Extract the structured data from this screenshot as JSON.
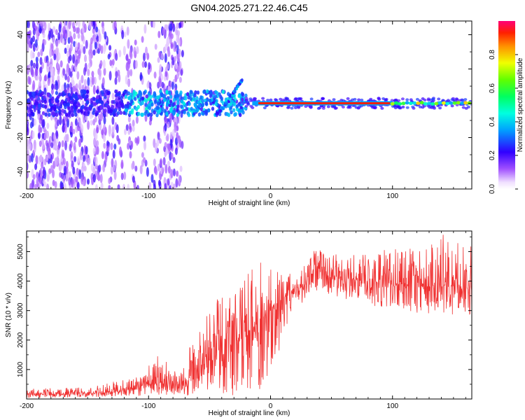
{
  "title": "GN04.2025.271.22.46.C45",
  "chart_data": [
    {
      "type": "heatmap",
      "title": "GN04.2025.271.22.46.C45",
      "xlabel": "Height of straight line (km)",
      "ylabel": "Frequency (Hz)",
      "xlim": [
        -200,
        165
      ],
      "ylim": [
        -50,
        48
      ],
      "xticks": [
        -200,
        -100,
        0,
        100
      ],
      "xtick_labels": [
        "-200",
        "-100",
        "0",
        "100"
      ],
      "yticks": [
        -40,
        -20,
        0,
        20,
        40
      ],
      "ytick_labels": [
        "-40",
        "-20",
        "0",
        "20",
        "40"
      ],
      "colorbar": {
        "label": "Normalized spectral amplitude",
        "range": [
          0,
          1
        ],
        "ticks": [
          0.0,
          0.2,
          0.4,
          0.6,
          0.8
        ],
        "tick_labels": [
          "0.0",
          "0.2",
          "0.4",
          "0.6",
          "0.8"
        ]
      },
      "features": {
        "noise_region_x": [
          -200,
          -72
        ],
        "transition_x": [
          -72,
          -20
        ],
        "strong_line_x": [
          -20,
          165
        ],
        "line_frequency_hz": 0,
        "rising_streak_points": [
          {
            "x": -45,
            "y": -6
          },
          {
            "x": -38,
            "y": -2
          },
          {
            "x": -32,
            "y": 4
          },
          {
            "x": -27,
            "y": 10
          },
          {
            "x": -23,
            "y": 13
          }
        ]
      }
    },
    {
      "type": "line",
      "xlabel": "Height of straight line (km)",
      "ylabel": "SNR (10 * v/v)",
      "xlim": [
        -200,
        165
      ],
      "ylim": [
        0,
        5700
      ],
      "xticks": [
        -200,
        -100,
        0,
        100
      ],
      "xtick_labels": [
        "-200",
        "-100",
        "0",
        "100"
      ],
      "yticks": [
        1000,
        2000,
        3000,
        4000,
        5000
      ],
      "ytick_labels": [
        "1000",
        "2000",
        "3000",
        "4000",
        "5000"
      ],
      "series": [
        {
          "name": "SNR",
          "color": "#f03232",
          "envelope": {
            "x": [
              -200,
              -150,
              -125,
              -105,
              -90,
              -75,
              -60,
              -50,
              -40,
              -30,
              -20,
              -10,
              0,
              10,
              20,
              30,
              37,
              45,
              60,
              80,
              100,
              120,
              140,
              165
            ],
            "mean": [
              150,
              180,
              260,
              480,
              560,
              400,
              900,
              1300,
              1700,
              1900,
              2200,
              2600,
              3000,
              3400,
              3700,
              3900,
              4550,
              4200,
              4100,
              4000,
              3900,
              3800,
              3850,
              3800
            ],
            "low": [
              40,
              50,
              60,
              100,
              150,
              100,
              100,
              100,
              100,
              100,
              100,
              200,
              1000,
              1800,
              3200,
              3300,
              3700,
              3500,
              3400,
              3200,
              3000,
              2900,
              2900,
              2800
            ],
            "high": [
              350,
              400,
              620,
              900,
              1600,
              900,
              2400,
              3000,
              3600,
              3900,
              4200,
              4700,
              4500,
              4200,
              4300,
              4600,
              5150,
              5000,
              4900,
              4900,
              5150,
              5100,
              5600,
              5300
            ]
          }
        }
      ]
    }
  ]
}
